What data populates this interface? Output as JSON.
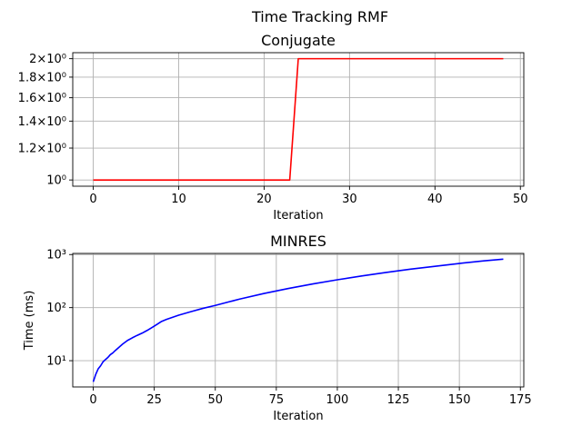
{
  "figure_title": "Time Tracking RMF",
  "chart_data": [
    {
      "type": "line",
      "title": "Conjugate",
      "xlabel": "Iteration",
      "ylabel": "",
      "yscale": "log",
      "grid": true,
      "xlim": [
        -2.4,
        50.4
      ],
      "ylim": [
        0.965,
        2.07
      ],
      "xticks": [
        0,
        10,
        20,
        30,
        40,
        50
      ],
      "yticks": [
        {
          "value": 1.0,
          "label": "10⁰"
        },
        {
          "value": 1.2,
          "label": "1.2×10⁰"
        },
        {
          "value": 1.4,
          "label": "1.4×10⁰"
        },
        {
          "value": 1.6,
          "label": "1.6×10⁰"
        },
        {
          "value": 1.8,
          "label": "1.8×10⁰"
        },
        {
          "value": 2.0,
          "label": "2×10⁰"
        }
      ],
      "series": [
        {
          "color": "#ff0000",
          "x": [
            0,
            23,
            24,
            48
          ],
          "y": [
            1,
            1,
            2,
            2
          ]
        }
      ]
    },
    {
      "type": "line",
      "title": "MINRES",
      "xlabel": "Iteration",
      "ylabel": "Time (ms)",
      "yscale": "log",
      "grid": true,
      "xlim": [
        -8.4,
        176.4
      ],
      "ylim": [
        3.2,
        1050
      ],
      "xticks": [
        0,
        25,
        50,
        75,
        100,
        125,
        150,
        175
      ],
      "yticks": [
        {
          "value": 10,
          "label": "10¹"
        },
        {
          "value": 100,
          "label": "10²"
        },
        {
          "value": 1000,
          "label": "10³"
        }
      ],
      "series": [
        {
          "color": "#0000ff",
          "x": [
            0,
            1,
            2,
            3,
            4,
            5,
            6,
            7,
            8,
            9,
            10,
            12,
            14,
            16,
            18,
            20,
            22,
            24,
            26,
            28,
            30,
            35,
            40,
            45,
            50,
            60,
            70,
            80,
            90,
            100,
            110,
            120,
            130,
            140,
            150,
            160,
            168
          ],
          "y": [
            4,
            5.5,
            7,
            8,
            9.5,
            10.5,
            11.5,
            13,
            14,
            15.5,
            17,
            20.5,
            24,
            27,
            30,
            33,
            37,
            42,
            48,
            55,
            60,
            72,
            84,
            97,
            110,
            145,
            185,
            230,
            280,
            335,
            395,
            460,
            530,
            600,
            680,
            760,
            820
          ]
        }
      ]
    }
  ]
}
